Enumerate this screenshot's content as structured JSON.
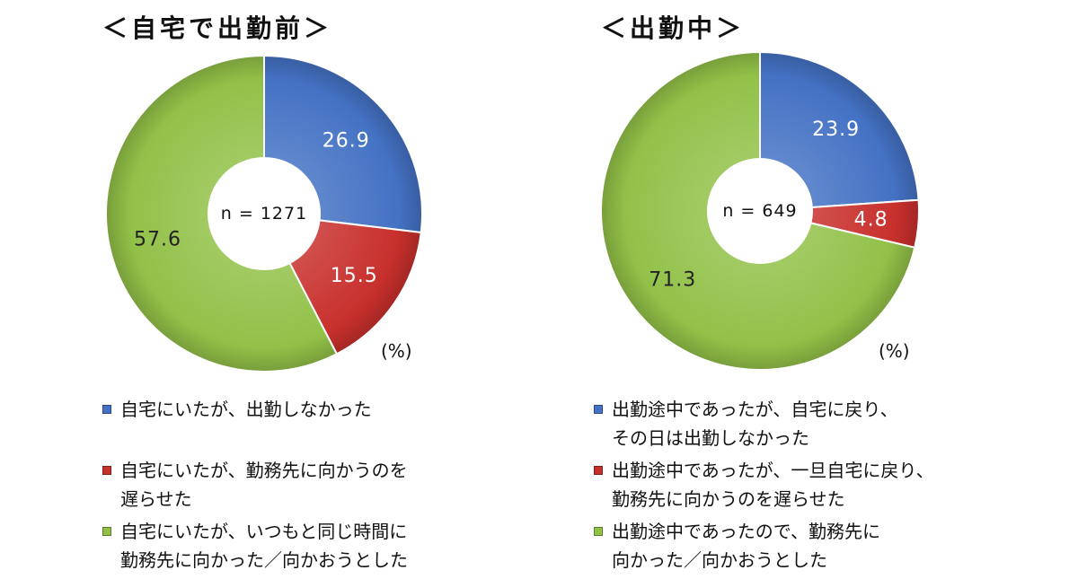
{
  "chart_data": [
    {
      "type": "pie",
      "title": "＜自宅で出勤前＞",
      "center_text": "n = 1271",
      "unit_text": "(%)",
      "label_format": "decimal-1",
      "categories": [
        "自宅にいたが、出勤しなかった",
        "自宅にいたが、勤務先に向かうのを遅らせた",
        "自宅にいたが、いつもと同じ時間に勤務先に向かった／向かおうとした"
      ],
      "values": [
        26.9,
        15.5,
        57.6
      ],
      "colors": [
        "#4472C4",
        "#C8302D",
        "#92C148"
      ],
      "legend": [
        {
          "lines": [
            "自宅にいたが、出勤しなかった"
          ],
          "color": "#4472C4"
        },
        {
          "lines": [
            "自宅にいたが、勤務先に向かうのを",
            "遅らせた"
          ],
          "color": "#C8302D"
        },
        {
          "lines": [
            "自宅にいたが、いつもと同じ時間に",
            "勤務先に向かった／向かおうとした"
          ],
          "color": "#92C148"
        }
      ],
      "legend_position": "bottom"
    },
    {
      "type": "pie",
      "title": "＜出勤中＞",
      "center_text": "n = 649",
      "unit_text": "(%)",
      "label_format": "decimal-1",
      "categories": [
        "出勤途中であったが、自宅に戻り、その日は出勤しなかった",
        "出勤途中であったが、一旦自宅に戻り、勤務先に向かうのを遅らせた",
        "出勤途中であったので、勤務先に向かった／向かおうとした"
      ],
      "values": [
        23.9,
        4.8,
        71.3
      ],
      "colors": [
        "#4472C4",
        "#C8302D",
        "#92C148"
      ],
      "legend": [
        {
          "lines": [
            "出勤途中であったが、自宅に戻り、",
            "その日は出勤しなかった"
          ],
          "color": "#4472C4"
        },
        {
          "lines": [
            "出勤途中であったが、一旦自宅に戻り、",
            "勤務先に向かうのを遅らせた"
          ],
          "color": "#C8302D"
        },
        {
          "lines": [
            "出勤途中であったので、勤務先に",
            "向かった／向かおうとした"
          ],
          "color": "#92C148"
        }
      ],
      "legend_position": "bottom"
    }
  ]
}
